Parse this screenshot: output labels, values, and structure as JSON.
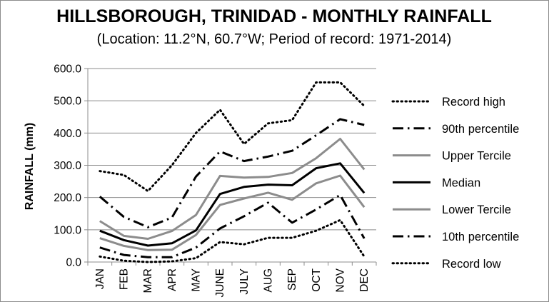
{
  "chart_data": {
    "type": "line",
    "title": "HILLSBOROUGH, TRINIDAD - MONTHLY RAINFALL",
    "subtitle": "(Location: 11.2°N, 60.7°W; Period of record: 1971-2014)",
    "xlabel": "",
    "ylabel": "RAINFALL (mm)",
    "ylim": [
      0,
      600
    ],
    "yticks": [
      "0.0",
      "100.0",
      "200.0",
      "300.0",
      "400.0",
      "500.0",
      "600.0"
    ],
    "categories": [
      "JAN",
      "FEB",
      "MAR",
      "APR",
      "MAY",
      "JUNE",
      "JULY",
      "AUG",
      "SEP",
      "OCT",
      "NOV",
      "DEC"
    ],
    "grid": "horizontal",
    "legend_position": "right",
    "series": [
      {
        "name": "Record high",
        "style": "dotted",
        "color": "#000000",
        "values": [
          282,
          270,
          220,
          300,
          400,
          472,
          366,
          430,
          440,
          557,
          557,
          484
        ]
      },
      {
        "name": "90th percentile",
        "style": "dashdot",
        "color": "#000000",
        "values": [
          203,
          140,
          108,
          138,
          265,
          343,
          313,
          327,
          345,
          393,
          443,
          425
        ]
      },
      {
        "name": "Upper Tercile",
        "style": "solid",
        "color": "#8c8c8c",
        "values": [
          127,
          81,
          72,
          96,
          146,
          267,
          262,
          264,
          276,
          322,
          382,
          287
        ]
      },
      {
        "name": "Median",
        "style": "solid",
        "color": "#000000",
        "values": [
          97,
          68,
          51,
          58,
          98,
          211,
          233,
          240,
          238,
          291,
          306,
          214
        ]
      },
      {
        "name": "Lower Tercile",
        "style": "solid",
        "color": "#8c8c8c",
        "values": [
          74,
          50,
          37,
          38,
          84,
          177,
          197,
          215,
          193,
          244,
          268,
          170
        ]
      },
      {
        "name": "10th percentile",
        "style": "dashdot",
        "color": "#000000",
        "values": [
          45,
          22,
          15,
          15,
          45,
          104,
          142,
          184,
          122,
          163,
          208,
          73
        ]
      },
      {
        "name": "Record low",
        "style": "dotted",
        "color": "#000000",
        "values": [
          17,
          4,
          0,
          2,
          12,
          62,
          55,
          75,
          75,
          97,
          130,
          17
        ]
      }
    ]
  }
}
